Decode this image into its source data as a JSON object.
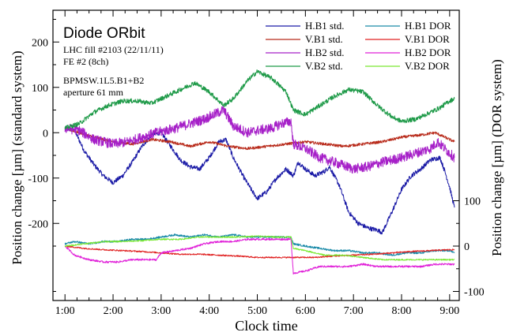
{
  "chart_data": {
    "type": "line",
    "title": "Diode ORbit",
    "annotations": [
      "LHC fill #2103 (22/11/11)",
      "FE #2 (8ch)",
      "BPMSW.1L5.B1+B2",
      "aperture 61 mm"
    ],
    "xlabel": "Clock time",
    "ylabel_left": "Position change  [µm]  (standard system)",
    "ylabel_right": "Position change  [µm]  (DOR system)",
    "x_ticks": [
      "1:00",
      "2:00",
      "3:00",
      "4:00",
      "5:00",
      "6:00",
      "7:00",
      "8:00",
      "9:00"
    ],
    "x_tick_hours": [
      1,
      2,
      3,
      4,
      5,
      6,
      7,
      8,
      9
    ],
    "xlim_hours": [
      0.75,
      9.2
    ],
    "left_axis": {
      "ylim": [
        -370,
        270
      ],
      "ticks": [
        "200",
        "100",
        "0",
        "-100",
        "-200"
      ],
      "tick_values": [
        200,
        100,
        0,
        -100,
        -200
      ]
    },
    "right_axis": {
      "ylim": [
        -100,
        100
      ],
      "ticks": [
        "100",
        "0",
        "-100"
      ],
      "tick_values": [
        100,
        0,
        -100
      ],
      "offset_on_left_axis": -250,
      "scale": 1.0
    },
    "legend_position": "top-right",
    "series": [
      {
        "name": "H.B1 std.",
        "color": "#1a1aa6",
        "axis": "left",
        "noise": 5,
        "points": [
          [
            1.0,
            10
          ],
          [
            1.2,
            5
          ],
          [
            1.4,
            -40
          ],
          [
            1.6,
            -70
          ],
          [
            1.8,
            -95
          ],
          [
            2.0,
            -110
          ],
          [
            2.2,
            -95
          ],
          [
            2.4,
            -65
          ],
          [
            2.6,
            -30
          ],
          [
            2.8,
            -5
          ],
          [
            3.0,
            0
          ],
          [
            3.2,
            -30
          ],
          [
            3.4,
            -60
          ],
          [
            3.6,
            -75
          ],
          [
            3.8,
            -80
          ],
          [
            4.0,
            -55
          ],
          [
            4.2,
            -20
          ],
          [
            4.35,
            -15
          ],
          [
            4.5,
            -55
          ],
          [
            4.7,
            -95
          ],
          [
            4.9,
            -130
          ],
          [
            5.0,
            -145
          ],
          [
            5.2,
            -130
          ],
          [
            5.4,
            -100
          ],
          [
            5.6,
            -80
          ],
          [
            5.75,
            -95
          ],
          [
            5.85,
            -65
          ],
          [
            6.0,
            -80
          ],
          [
            6.2,
            -95
          ],
          [
            6.4,
            -85
          ],
          [
            6.5,
            -75
          ],
          [
            6.7,
            -115
          ],
          [
            6.9,
            -175
          ],
          [
            7.1,
            -200
          ],
          [
            7.3,
            -210
          ],
          [
            7.5,
            -215
          ],
          [
            7.6,
            -220
          ],
          [
            7.8,
            -175
          ],
          [
            8.0,
            -125
          ],
          [
            8.2,
            -95
          ],
          [
            8.4,
            -80
          ],
          [
            8.6,
            -60
          ],
          [
            8.8,
            -55
          ],
          [
            8.9,
            -85
          ],
          [
            9.0,
            -120
          ],
          [
            9.1,
            -165
          ]
        ]
      },
      {
        "name": "V.B1 std.",
        "color": "#b82a1a",
        "axis": "left",
        "noise": 3,
        "points": [
          [
            1.0,
            10
          ],
          [
            1.3,
            0
          ],
          [
            1.6,
            -10
          ],
          [
            2.0,
            -20
          ],
          [
            2.4,
            -25
          ],
          [
            2.8,
            -15
          ],
          [
            3.2,
            -20
          ],
          [
            3.6,
            -30
          ],
          [
            4.0,
            -20
          ],
          [
            4.4,
            -30
          ],
          [
            4.8,
            -35
          ],
          [
            5.2,
            -30
          ],
          [
            5.6,
            -25
          ],
          [
            6.0,
            -20
          ],
          [
            6.4,
            -25
          ],
          [
            6.8,
            -30
          ],
          [
            7.2,
            -25
          ],
          [
            7.6,
            -20
          ],
          [
            8.0,
            -10
          ],
          [
            8.4,
            -5
          ],
          [
            8.7,
            0
          ],
          [
            9.0,
            -15
          ],
          [
            9.1,
            -20
          ]
        ]
      },
      {
        "name": "H.B2 std.",
        "color": "#a620c8",
        "axis": "left",
        "noise": 11,
        "points": [
          [
            1.0,
            10
          ],
          [
            1.3,
            5
          ],
          [
            1.6,
            -15
          ],
          [
            2.0,
            -25
          ],
          [
            2.3,
            -20
          ],
          [
            2.6,
            -10
          ],
          [
            2.9,
            0
          ],
          [
            3.3,
            10
          ],
          [
            3.6,
            20
          ],
          [
            3.9,
            30
          ],
          [
            4.2,
            45
          ],
          [
            4.3,
            50
          ],
          [
            4.5,
            15
          ],
          [
            4.8,
            0
          ],
          [
            5.0,
            5
          ],
          [
            5.3,
            10
          ],
          [
            5.5,
            20
          ],
          [
            5.7,
            25
          ],
          [
            5.75,
            -25
          ],
          [
            6.0,
            -35
          ],
          [
            6.3,
            -55
          ],
          [
            6.6,
            -65
          ],
          [
            7.0,
            -80
          ],
          [
            7.3,
            -75
          ],
          [
            7.6,
            -65
          ],
          [
            8.0,
            -55
          ],
          [
            8.3,
            -45
          ],
          [
            8.6,
            -35
          ],
          [
            8.75,
            -20
          ],
          [
            9.0,
            -45
          ],
          [
            9.1,
            -55
          ]
        ]
      },
      {
        "name": "V.B2 std.",
        "color": "#1e9a48",
        "axis": "left",
        "noise": 5,
        "points": [
          [
            1.0,
            10
          ],
          [
            1.3,
            20
          ],
          [
            1.6,
            45
          ],
          [
            1.9,
            60
          ],
          [
            2.2,
            70
          ],
          [
            2.5,
            70
          ],
          [
            2.8,
            65
          ],
          [
            3.1,
            80
          ],
          [
            3.4,
            95
          ],
          [
            3.7,
            110
          ],
          [
            4.0,
            90
          ],
          [
            4.3,
            60
          ],
          [
            4.5,
            75
          ],
          [
            4.8,
            115
          ],
          [
            5.0,
            135
          ],
          [
            5.3,
            120
          ],
          [
            5.6,
            90
          ],
          [
            5.75,
            50
          ],
          [
            6.0,
            40
          ],
          [
            6.3,
            60
          ],
          [
            6.6,
            80
          ],
          [
            6.9,
            95
          ],
          [
            7.2,
            90
          ],
          [
            7.5,
            60
          ],
          [
            7.8,
            35
          ],
          [
            8.0,
            25
          ],
          [
            8.3,
            30
          ],
          [
            8.6,
            45
          ],
          [
            8.8,
            55
          ],
          [
            9.0,
            70
          ],
          [
            9.1,
            75
          ]
        ]
      },
      {
        "name": "H.B1 DOR",
        "color": "#1a8aa8",
        "axis": "right",
        "noise": 2,
        "points": [
          [
            1.0,
            5
          ],
          [
            1.2,
            10
          ],
          [
            1.5,
            5
          ],
          [
            1.8,
            10
          ],
          [
            2.1,
            10
          ],
          [
            2.4,
            15
          ],
          [
            2.7,
            15
          ],
          [
            3.0,
            20
          ],
          [
            3.3,
            25
          ],
          [
            3.6,
            20
          ],
          [
            3.9,
            25
          ],
          [
            4.2,
            20
          ],
          [
            4.5,
            25
          ],
          [
            4.8,
            20
          ],
          [
            5.1,
            20
          ],
          [
            5.4,
            20
          ],
          [
            5.7,
            20
          ],
          [
            5.75,
            5
          ],
          [
            6.0,
            0
          ],
          [
            6.3,
            -5
          ],
          [
            6.6,
            -10
          ],
          [
            6.9,
            -10
          ],
          [
            7.2,
            -15
          ],
          [
            7.5,
            -15
          ],
          [
            7.8,
            -20
          ],
          [
            8.1,
            -15
          ],
          [
            8.4,
            -15
          ],
          [
            8.7,
            -10
          ],
          [
            9.0,
            -10
          ],
          [
            9.1,
            -15
          ]
        ]
      },
      {
        "name": "V.B1 DOR",
        "color": "#e02222",
        "axis": "right",
        "noise": 1.5,
        "points": [
          [
            1.0,
            0
          ],
          [
            1.4,
            -5
          ],
          [
            1.8,
            -8
          ],
          [
            2.2,
            -10
          ],
          [
            2.6,
            -12
          ],
          [
            3.0,
            -15
          ],
          [
            3.4,
            -18
          ],
          [
            3.8,
            -18
          ],
          [
            4.2,
            -20
          ],
          [
            4.6,
            -22
          ],
          [
            5.0,
            -25
          ],
          [
            5.4,
            -25
          ],
          [
            5.8,
            -25
          ],
          [
            6.2,
            -25
          ],
          [
            6.6,
            -22
          ],
          [
            7.0,
            -20
          ],
          [
            7.4,
            -18
          ],
          [
            7.8,
            -15
          ],
          [
            8.2,
            -12
          ],
          [
            8.6,
            -10
          ],
          [
            9.0,
            -8
          ],
          [
            9.1,
            -8
          ]
        ]
      },
      {
        "name": "H.B2 DOR",
        "color": "#e020d8",
        "axis": "right",
        "noise": 2,
        "points": [
          [
            1.0,
            0
          ],
          [
            1.2,
            -20
          ],
          [
            1.5,
            -30
          ],
          [
            1.8,
            -35
          ],
          [
            2.1,
            -35
          ],
          [
            2.4,
            -30
          ],
          [
            2.7,
            -30
          ],
          [
            2.9,
            -30
          ],
          [
            3.0,
            -15
          ],
          [
            3.3,
            -10
          ],
          [
            3.6,
            -5
          ],
          [
            3.9,
            5
          ],
          [
            4.2,
            10
          ],
          [
            4.5,
            10
          ],
          [
            4.8,
            15
          ],
          [
            5.1,
            15
          ],
          [
            5.4,
            15
          ],
          [
            5.7,
            15
          ],
          [
            5.75,
            -60
          ],
          [
            6.0,
            -55
          ],
          [
            6.3,
            -45
          ],
          [
            6.6,
            -45
          ],
          [
            6.9,
            -45
          ],
          [
            7.2,
            -40
          ],
          [
            7.5,
            -45
          ],
          [
            7.8,
            -45
          ],
          [
            8.1,
            -45
          ],
          [
            8.4,
            -45
          ],
          [
            8.7,
            -40
          ],
          [
            9.0,
            -40
          ],
          [
            9.1,
            -40
          ]
        ]
      },
      {
        "name": "V.B2 DOR",
        "color": "#7ae832",
        "axis": "right",
        "noise": 1.5,
        "points": [
          [
            1.0,
            0
          ],
          [
            1.4,
            5
          ],
          [
            1.8,
            10
          ],
          [
            2.2,
            10
          ],
          [
            2.6,
            12
          ],
          [
            3.0,
            15
          ],
          [
            3.4,
            15
          ],
          [
            3.8,
            20
          ],
          [
            4.2,
            20
          ],
          [
            4.6,
            20
          ],
          [
            5.0,
            22
          ],
          [
            5.4,
            20
          ],
          [
            5.7,
            20
          ],
          [
            5.75,
            -5
          ],
          [
            6.0,
            -10
          ],
          [
            6.4,
            -20
          ],
          [
            6.8,
            -20
          ],
          [
            7.2,
            -25
          ],
          [
            7.6,
            -30
          ],
          [
            8.0,
            -30
          ],
          [
            8.4,
            -30
          ],
          [
            8.8,
            -30
          ],
          [
            9.1,
            -30
          ]
        ]
      }
    ]
  }
}
